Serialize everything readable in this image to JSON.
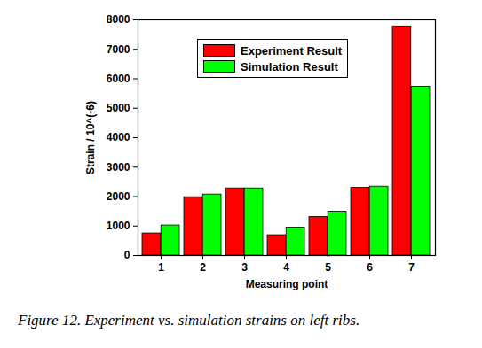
{
  "chart_data": {
    "type": "bar",
    "title": "Figure 12. Experiment vs. simulation strains on left ribs.",
    "x_label": "Measuring point",
    "y_label": "Strain / 10^(-6)",
    "categories": [
      "1",
      "2",
      "3",
      "4",
      "5",
      "6",
      "7"
    ],
    "series": [
      {
        "name": "Experiment Result",
        "color": "#ff0000",
        "values": [
          750,
          1980,
          2280,
          690,
          1310,
          2300,
          7780
        ]
      },
      {
        "name": "Simulation Result",
        "color": "#00ff00",
        "values": [
          1020,
          2070,
          2280,
          950,
          1490,
          2340,
          5730
        ]
      }
    ],
    "ylim": [
      0,
      8000
    ],
    "yticks": [
      0,
      1000,
      2000,
      3000,
      4000,
      5000,
      6000,
      7000,
      8000
    ],
    "grid": false,
    "legend": "upper left"
  }
}
